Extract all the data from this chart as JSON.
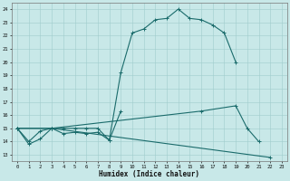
{
  "xlabel": "Humidex (Indice chaleur)",
  "xlim": [
    -0.5,
    23.5
  ],
  "ylim": [
    12.5,
    24.5
  ],
  "yticks": [
    13,
    14,
    15,
    16,
    17,
    18,
    19,
    20,
    21,
    22,
    23,
    24
  ],
  "xticks": [
    0,
    1,
    2,
    3,
    4,
    5,
    6,
    7,
    8,
    9,
    10,
    11,
    12,
    13,
    14,
    15,
    16,
    17,
    18,
    19,
    20,
    21,
    22,
    23
  ],
  "bg_color": "#c8e8e8",
  "line_color": "#1a6b6b",
  "grid_color": "#a0cccc",
  "lines_v2": {
    "line1_x": [
      0,
      1,
      2,
      3,
      4,
      5,
      6,
      7,
      8,
      9,
      10,
      11,
      12,
      13,
      14,
      15,
      16,
      17,
      18,
      19
    ],
    "line1_y": [
      15.0,
      13.8,
      14.2,
      15.0,
      14.6,
      14.7,
      14.6,
      14.7,
      14.1,
      19.2,
      22.2,
      22.5,
      23.2,
      23.3,
      24.0,
      23.3,
      23.2,
      22.8,
      22.2,
      20.0
    ],
    "line2_x": [
      0,
      1,
      2,
      3,
      4,
      5,
      6,
      7,
      8,
      9
    ],
    "line2_y": [
      15.0,
      14.0,
      14.8,
      15.0,
      15.0,
      15.0,
      15.0,
      15.0,
      14.1,
      16.3
    ],
    "line3_x": [
      0,
      3,
      16,
      19,
      20,
      21
    ],
    "line3_y": [
      15.0,
      15.0,
      16.3,
      16.7,
      15.0,
      14.0
    ],
    "line4_x": [
      0,
      3,
      22
    ],
    "line4_y": [
      15.0,
      15.0,
      12.8
    ]
  }
}
